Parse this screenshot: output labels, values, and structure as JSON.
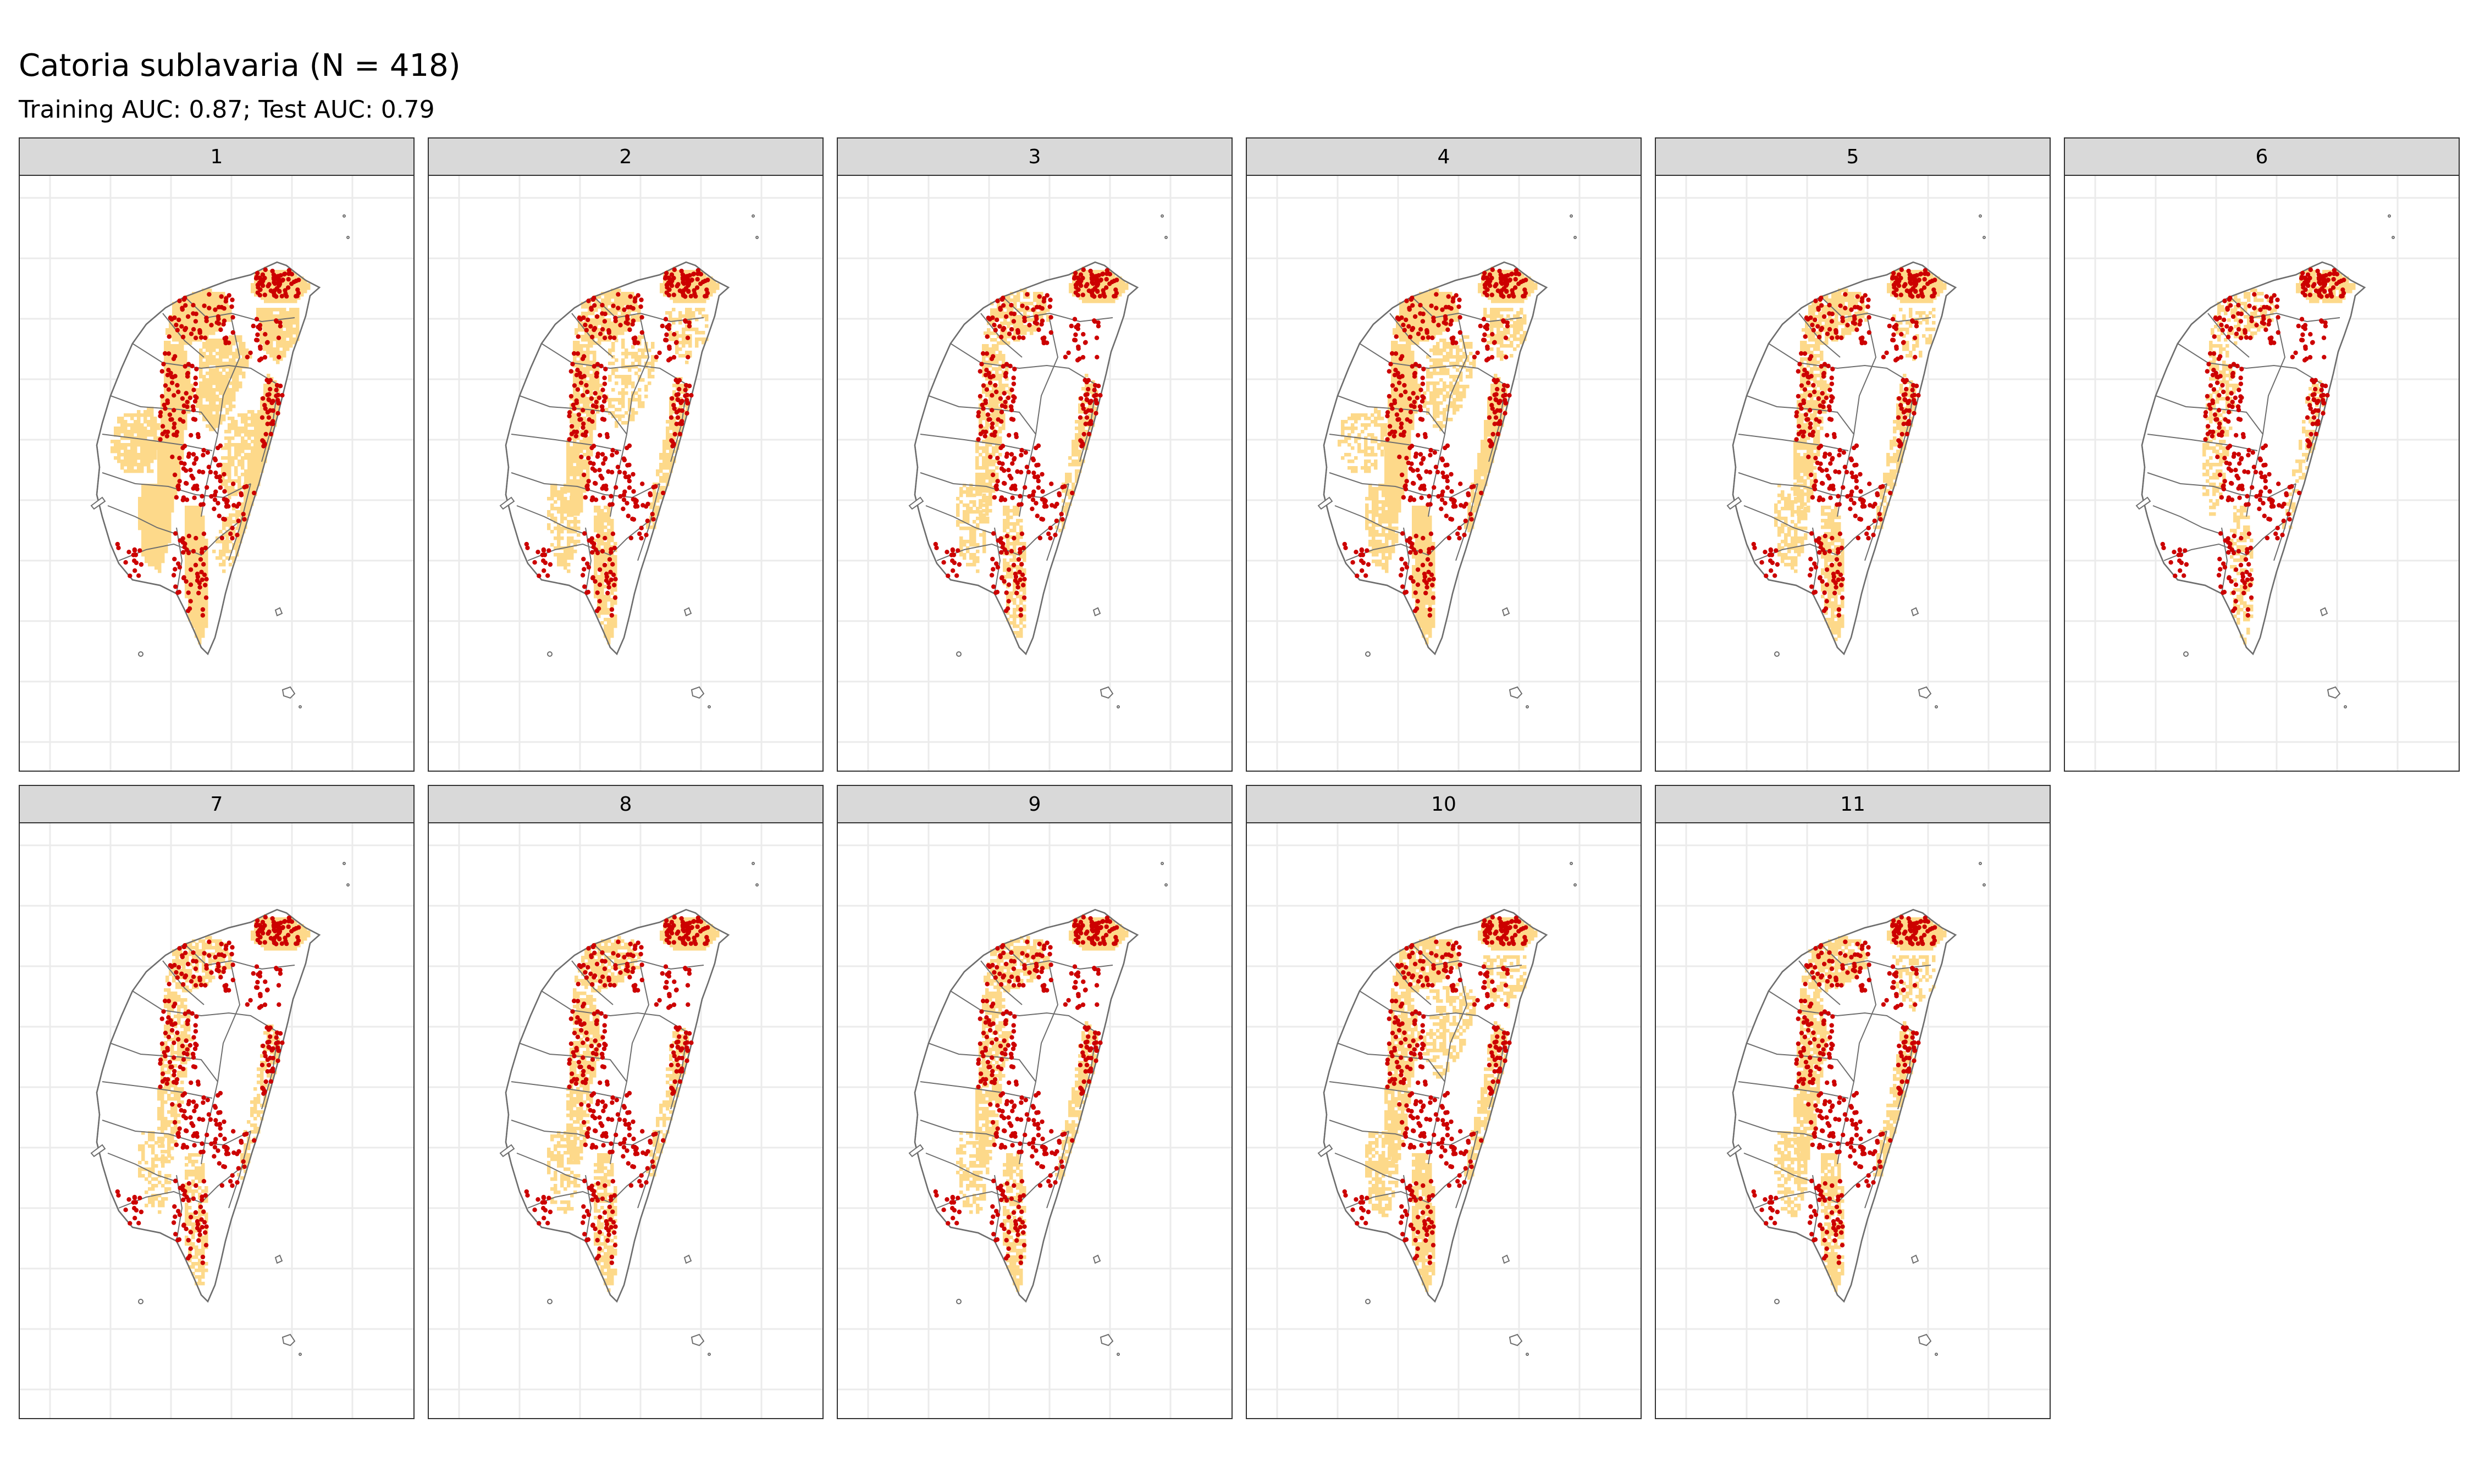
{
  "title": "Catoria sublavaria (N = 418)",
  "subtitle": "Training AUC: 0.87; Test AUC: 0.79",
  "colors": {
    "suitable_area": "#fdd98a",
    "occurrence_point": "#cc0000",
    "boundary": "#6e6e6e",
    "grid": "#ebebeb",
    "strip_bg": "#d9d9d9"
  },
  "facets": [
    {
      "label": "1",
      "suitability": 0.85
    },
    {
      "label": "2",
      "suitability": 0.55
    },
    {
      "label": "3",
      "suitability": 0.45
    },
    {
      "label": "4",
      "suitability": 0.65
    },
    {
      "label": "5",
      "suitability": 0.5
    },
    {
      "label": "6",
      "suitability": 0.3
    },
    {
      "label": "7",
      "suitability": 0.4
    },
    {
      "label": "8",
      "suitability": 0.45
    },
    {
      "label": "9",
      "suitability": 0.45
    },
    {
      "label": "10",
      "suitability": 0.55
    },
    {
      "label": "11",
      "suitability": 0.5
    }
  ]
}
